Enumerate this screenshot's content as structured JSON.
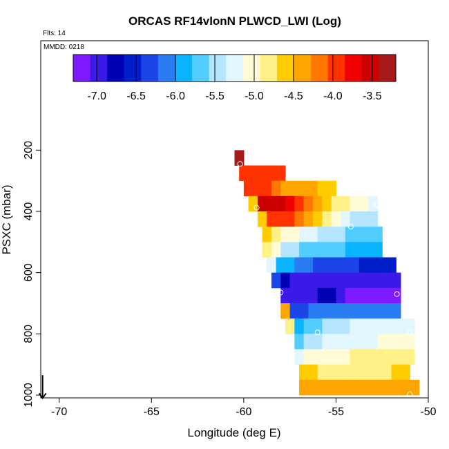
{
  "figure": {
    "title": "ORCAS RF14vlonN PLWCD_LWI (Log)",
    "flights_label": "Flts: 14",
    "date_label": "MMDD: 0218"
  },
  "colors": {
    "palette": [
      "#7f1aff",
      "#3b1ae8",
      "#0000b4",
      "#001eca",
      "#1c45e8",
      "#2a7cf2",
      "#0ab4ff",
      "#52cdff",
      "#b5e5ff",
      "#e2f6ff",
      "#fffbd6",
      "#fff186",
      "#ffcc00",
      "#ffa500",
      "#ff7700",
      "#ff3300",
      "#f00000",
      "#cc0000",
      "#a61a1a"
    ],
    "marker": "#ffffff"
  },
  "chart_data": {
    "type": "heatmap",
    "title": "ORCAS RF14vlonN PLWCD_LWI (Log)",
    "xlabel": "Longitude (deg E)",
    "ylabel": "PSXC (mbar)",
    "xlim": [
      -71,
      -50
    ],
    "ylim": [
      1000,
      50
    ],
    "y_inverted": true,
    "x_ticks": [
      -70,
      -65,
      -60,
      -55,
      -50
    ],
    "y_ticks": [
      200,
      400,
      600,
      800,
      1000
    ],
    "colorbar": {
      "min": -7.3,
      "max": -3.2,
      "ticks": [
        -7.0,
        -6.5,
        -6.0,
        -5.5,
        -5.0,
        -4.5,
        -4.0,
        -3.5
      ],
      "tick_labels": [
        "-7.0",
        "-6.5",
        "-6.0",
        "-5.5",
        "-5.0",
        "-4.5",
        "-4.0",
        "-3.5"
      ]
    },
    "pressure_bin_width": 50,
    "bands": [
      {
        "p": 250,
        "cells": [
          [
            -60.25,
            -3.4
          ]
        ]
      },
      {
        "p": 300,
        "cells": [
          [
            -60.0,
            -3.85
          ],
          [
            -59.5,
            -3.85
          ],
          [
            -59.0,
            -3.9
          ],
          [
            -58.5,
            -3.95
          ],
          [
            -58.0,
            -4.0
          ]
        ]
      },
      {
        "p": 350,
        "cells": [
          [
            -59.75,
            -4.0
          ],
          [
            -59.25,
            -3.95
          ],
          [
            -58.75,
            -4.05
          ],
          [
            -58.25,
            -4.15
          ],
          [
            -57.75,
            -4.3
          ],
          [
            -57.25,
            -4.35
          ],
          [
            -56.75,
            -4.4
          ],
          [
            -56.25,
            -4.45
          ],
          [
            -55.75,
            -4.5
          ],
          [
            -55.25,
            -4.5
          ]
        ]
      },
      {
        "p": 400,
        "cells": [
          [
            -59.5,
            -4.5
          ],
          [
            -59.0,
            -3.5
          ],
          [
            -58.5,
            -3.45
          ],
          [
            -58.0,
            -3.55
          ],
          [
            -57.5,
            -3.7
          ],
          [
            -57.0,
            -3.9
          ],
          [
            -56.5,
            -4.2
          ],
          [
            -56.0,
            -4.4
          ],
          [
            -55.5,
            -4.6
          ],
          [
            -55.0,
            -4.75
          ],
          [
            -54.5,
            -4.85
          ],
          [
            -54.0,
            -5.0
          ],
          [
            -53.5,
            -5.1
          ],
          [
            -53.0,
            -5.15
          ]
        ]
      },
      {
        "p": 450,
        "cells": [
          [
            -59.0,
            -4.5
          ],
          [
            -58.5,
            -3.85
          ],
          [
            -58.0,
            -3.9
          ],
          [
            -57.5,
            -4.05
          ],
          [
            -57.0,
            -4.25
          ],
          [
            -56.5,
            -4.45
          ],
          [
            -56.0,
            -4.65
          ],
          [
            -55.5,
            -4.85
          ],
          [
            -55.0,
            -5.05
          ],
          [
            -54.5,
            -5.2
          ],
          [
            -54.0,
            -5.4
          ],
          [
            -53.5,
            -5.5
          ],
          [
            -53.0,
            -5.55
          ]
        ]
      },
      {
        "p": 500,
        "cells": [
          [
            -58.75,
            -4.7
          ],
          [
            -58.25,
            -4.85
          ],
          [
            -57.75,
            -4.95
          ],
          [
            -57.25,
            -5.05
          ],
          [
            -56.75,
            -5.15
          ],
          [
            -56.25,
            -5.3
          ],
          [
            -55.75,
            -5.4
          ],
          [
            -55.25,
            -5.5
          ],
          [
            -54.75,
            -5.55
          ],
          [
            -54.25,
            -5.6
          ],
          [
            -53.75,
            -5.6
          ],
          [
            -53.25,
            -5.6
          ],
          [
            -52.75,
            -5.6
          ]
        ]
      },
      {
        "p": 550,
        "cells": [
          [
            -58.75,
            -4.75
          ],
          [
            -58.25,
            -5.1
          ],
          [
            -57.75,
            -5.5
          ],
          [
            -57.25,
            -5.55
          ],
          [
            -56.75,
            -5.6
          ],
          [
            -56.25,
            -5.65
          ],
          [
            -55.75,
            -5.7
          ],
          [
            -55.25,
            -5.75
          ],
          [
            -54.75,
            -5.75
          ],
          [
            -54.25,
            -5.8
          ],
          [
            -53.75,
            -5.8
          ],
          [
            -53.25,
            -5.8
          ],
          [
            -52.75,
            -5.85
          ]
        ]
      },
      {
        "p": 600,
        "cells": [
          [
            -58.5,
            -5.25
          ],
          [
            -58.0,
            -5.9
          ],
          [
            -57.5,
            -6.0
          ],
          [
            -57.0,
            -6.1
          ],
          [
            -56.5,
            -6.2
          ],
          [
            -56.0,
            -6.25
          ],
          [
            -55.5,
            -6.3
          ],
          [
            -55.0,
            -6.35
          ],
          [
            -54.5,
            -6.35
          ],
          [
            -54.0,
            -6.4
          ],
          [
            -53.5,
            -6.5
          ],
          [
            -53.0,
            -6.55
          ],
          [
            -52.5,
            -6.6
          ],
          [
            -52.0,
            -6.55
          ]
        ]
      },
      {
        "p": 650,
        "cells": [
          [
            -58.25,
            -6.3
          ],
          [
            -57.75,
            -6.85
          ],
          [
            -57.25,
            -6.95
          ],
          [
            -56.75,
            -7.0
          ],
          [
            -56.25,
            -7.0
          ],
          [
            -55.75,
            -7.0
          ],
          [
            -55.25,
            -7.05
          ],
          [
            -54.75,
            -7.05
          ],
          [
            -54.25,
            -7.05
          ],
          [
            -53.75,
            -7.05
          ],
          [
            -53.25,
            -7.05
          ],
          [
            -52.75,
            -7.05
          ],
          [
            -52.25,
            -7.05
          ],
          [
            -51.75,
            -7.0
          ]
        ]
      },
      {
        "p": 700,
        "cells": [
          [
            -57.75,
            -7.0
          ],
          [
            -57.25,
            -7.0
          ],
          [
            -56.75,
            -6.95
          ],
          [
            -56.25,
            -6.9
          ],
          [
            -55.75,
            -6.85
          ],
          [
            -55.25,
            -6.8
          ],
          [
            -54.75,
            -7.05
          ],
          [
            -54.25,
            -7.15
          ],
          [
            -53.75,
            -7.2
          ],
          [
            -53.25,
            -7.25
          ],
          [
            -52.75,
            -7.25
          ],
          [
            -52.25,
            -7.3
          ],
          [
            -51.75,
            -7.25
          ]
        ]
      },
      {
        "p": 750,
        "cells": [
          [
            -57.75,
            -4.4
          ],
          [
            -57.25,
            -6.4
          ],
          [
            -56.75,
            -6.3
          ],
          [
            -56.25,
            -6.2
          ],
          [
            -55.75,
            -6.2
          ],
          [
            -55.25,
            -6.15
          ],
          [
            -54.75,
            -6.15
          ],
          [
            -54.25,
            -6.1
          ],
          [
            -53.75,
            -6.1
          ],
          [
            -53.25,
            -6.1
          ],
          [
            -52.75,
            -6.1
          ],
          [
            -52.25,
            -6.05
          ],
          [
            -51.75,
            -6.05
          ]
        ]
      },
      {
        "p": 800,
        "cells": [
          [
            -57.5,
            -4.9
          ],
          [
            -57.0,
            -5.8
          ],
          [
            -56.5,
            -5.75
          ],
          [
            -56.0,
            -5.65
          ],
          [
            -55.5,
            -5.55
          ],
          [
            -55.0,
            -5.45
          ],
          [
            -54.5,
            -5.4
          ],
          [
            -54.0,
            -5.35
          ],
          [
            -53.5,
            -5.3
          ],
          [
            -53.0,
            -5.3
          ],
          [
            -52.5,
            -5.3
          ],
          [
            -52.0,
            -5.25
          ],
          [
            -51.5,
            -5.25
          ],
          [
            -51.0,
            -5.25
          ]
        ]
      },
      {
        "p": 850,
        "cells": [
          [
            -57.0,
            -5.6
          ],
          [
            -56.5,
            -5.55
          ],
          [
            -56.0,
            -5.45
          ],
          [
            -55.5,
            -5.35
          ],
          [
            -55.0,
            -5.3
          ],
          [
            -54.5,
            -5.25
          ],
          [
            -54.0,
            -5.2
          ],
          [
            -53.5,
            -5.15
          ],
          [
            -53.0,
            -5.15
          ],
          [
            -52.5,
            -5.1
          ],
          [
            -52.0,
            -5.1
          ],
          [
            -51.5,
            -5.05
          ],
          [
            -51.0,
            -5.05
          ]
        ]
      },
      {
        "p": 900,
        "cells": [
          [
            -57.0,
            -5.15
          ],
          [
            -56.5,
            -5.1
          ],
          [
            -56.0,
            -5.05
          ],
          [
            -55.5,
            -5.0
          ],
          [
            -55.0,
            -4.95
          ],
          [
            -54.5,
            -4.95
          ],
          [
            -54.0,
            -4.9
          ],
          [
            -53.5,
            -4.9
          ],
          [
            -53.0,
            -4.85
          ],
          [
            -52.5,
            -4.85
          ],
          [
            -52.0,
            -4.8
          ],
          [
            -51.5,
            -4.8
          ],
          [
            -51.0,
            -4.8
          ]
        ]
      },
      {
        "p": 950,
        "cells": [
          [
            -56.75,
            -4.65
          ],
          [
            -56.25,
            -4.65
          ],
          [
            -55.75,
            -4.75
          ],
          [
            -55.25,
            -4.85
          ],
          [
            -54.75,
            -4.85
          ],
          [
            -54.25,
            -4.8
          ],
          [
            -53.75,
            -4.8
          ],
          [
            -53.25,
            -4.75
          ],
          [
            -52.75,
            -4.75
          ],
          [
            -52.25,
            -4.75
          ],
          [
            -51.75,
            -4.7
          ],
          [
            -51.25,
            -4.7
          ]
        ]
      },
      {
        "p": 1000,
        "cells": [
          [
            -56.75,
            -4.45
          ],
          [
            -56.25,
            -4.45
          ],
          [
            -55.75,
            -4.45
          ],
          [
            -55.25,
            -4.45
          ],
          [
            -54.75,
            -4.45
          ],
          [
            -54.25,
            -4.45
          ],
          [
            -53.75,
            -4.45
          ],
          [
            -53.25,
            -4.45
          ],
          [
            -52.75,
            -4.45
          ],
          [
            -52.25,
            -4.45
          ],
          [
            -51.75,
            -4.45
          ],
          [
            -51.25,
            -4.45
          ],
          [
            -50.75,
            -4.45
          ]
        ]
      }
    ],
    "markers": [
      {
        "lon": -60.2,
        "p": 245
      },
      {
        "lon": -59.3,
        "p": 388
      },
      {
        "lon": -52.8,
        "p": 378
      },
      {
        "lon": -54.2,
        "p": 450
      },
      {
        "lon": -58.0,
        "p": 665
      },
      {
        "lon": -51.7,
        "p": 670
      },
      {
        "lon": -56.0,
        "p": 795
      },
      {
        "lon": -51.0,
        "p": 795
      },
      {
        "lon": -57.7,
        "p": 835
      },
      {
        "lon": -57.2,
        "p": 1000
      },
      {
        "lon": -51.0,
        "p": 997
      }
    ],
    "arrow": {
      "lon": -70.9,
      "p_from": 935,
      "p_to": 1010
    }
  }
}
